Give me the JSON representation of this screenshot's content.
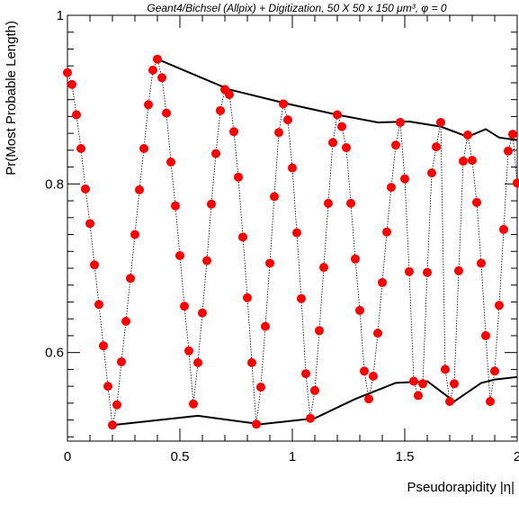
{
  "chart_data": {
    "type": "scatter",
    "title": "Geant4/Bichsel (Allpix) + Digitization, 50 X 50 x 150 μm³, φ = 0",
    "xlabel": "Pseudorapidity |η|",
    "ylabel": "Pr(Most Probable Length)",
    "xlim": [
      0,
      2
    ],
    "ylim": [
      0.495,
      1.0
    ],
    "x_ticks": [
      0,
      0.5,
      1,
      1.5,
      2
    ],
    "x_tick_labels": [
      "0",
      "0.5",
      "1",
      "1.5",
      "2"
    ],
    "y_ticks": [
      0.6,
      0.8,
      1.0
    ],
    "y_tick_labels": [
      "0.6",
      "0.8",
      "1"
    ],
    "grid": false,
    "marker_color": "#ff0000",
    "envelope_color": "#000000",
    "series": [
      {
        "values_x": [
          0.0,
          0.02,
          0.04,
          0.06,
          0.08,
          0.1,
          0.12,
          0.14,
          0.16,
          0.18,
          0.2,
          0.22,
          0.24,
          0.26,
          0.28,
          0.3,
          0.32,
          0.34,
          0.36,
          0.38,
          0.4,
          0.42,
          0.44,
          0.46,
          0.48,
          0.5,
          0.52,
          0.54,
          0.56,
          0.58,
          0.6,
          0.62,
          0.64,
          0.66,
          0.68,
          0.7,
          0.72,
          0.74,
          0.76,
          0.78,
          0.8,
          0.82,
          0.84,
          0.86,
          0.88,
          0.9,
          0.92,
          0.94,
          0.96,
          0.98,
          1.0,
          1.02,
          1.04,
          1.06,
          1.08,
          1.1,
          1.12,
          1.14,
          1.16,
          1.18,
          1.2,
          1.22,
          1.24,
          1.26,
          1.28,
          1.3,
          1.32,
          1.34,
          1.36,
          1.38,
          1.4,
          1.42,
          1.44,
          1.46,
          1.48,
          1.5,
          1.52,
          1.54,
          1.56,
          1.58,
          1.6,
          1.62,
          1.64,
          1.66,
          1.68,
          1.7,
          1.72,
          1.74,
          1.76,
          1.78,
          1.8,
          1.82,
          1.84,
          1.86,
          1.88,
          1.9,
          1.92,
          1.94,
          1.96,
          1.98,
          2.0
        ],
        "values_y": [
          0.932,
          0.918,
          0.882,
          0.842,
          0.794,
          0.753,
          0.704,
          0.657,
          0.608,
          0.56,
          0.514,
          0.538,
          0.589,
          0.637,
          0.688,
          0.74,
          0.793,
          0.842,
          0.894,
          0.935,
          0.948,
          0.926,
          0.884,
          0.826,
          0.774,
          0.715,
          0.655,
          0.602,
          0.539,
          0.588,
          0.647,
          0.709,
          0.776,
          0.836,
          0.887,
          0.912,
          0.906,
          0.862,
          0.808,
          0.737,
          0.665,
          0.588,
          0.515,
          0.559,
          0.631,
          0.706,
          0.785,
          0.861,
          0.895,
          0.876,
          0.819,
          0.742,
          0.664,
          0.575,
          0.522,
          0.555,
          0.626,
          0.701,
          0.777,
          0.849,
          0.882,
          0.868,
          0.843,
          0.777,
          0.711,
          0.65,
          0.578,
          0.545,
          0.572,
          0.623,
          0.683,
          0.743,
          0.796,
          0.846,
          0.873,
          0.806,
          0.696,
          0.566,
          0.549,
          0.563,
          0.695,
          0.813,
          0.844,
          0.873,
          0.58,
          0.542,
          0.563,
          0.697,
          0.827,
          0.858,
          0.828,
          0.778,
          0.706,
          0.62,
          0.542,
          0.578,
          0.656,
          0.746,
          0.839,
          0.859,
          0.801
        ]
      }
    ],
    "envelope_upper": {
      "x": [
        0.4,
        0.72,
        0.98,
        1.2,
        1.38,
        1.52,
        1.66,
        1.78,
        1.86,
        1.92,
        2.0
      ],
      "y": [
        0.948,
        0.912,
        0.895,
        0.882,
        0.873,
        0.874,
        0.868,
        0.856,
        0.865,
        0.855,
        0.852
      ]
    },
    "envelope_lower": {
      "x": [
        0.2,
        0.58,
        0.86,
        1.1,
        1.28,
        1.46,
        1.6,
        1.72,
        1.84,
        1.9,
        2.0
      ],
      "y": [
        0.514,
        0.525,
        0.515,
        0.522,
        0.545,
        0.564,
        0.566,
        0.542,
        0.564,
        0.568,
        0.571
      ]
    }
  }
}
